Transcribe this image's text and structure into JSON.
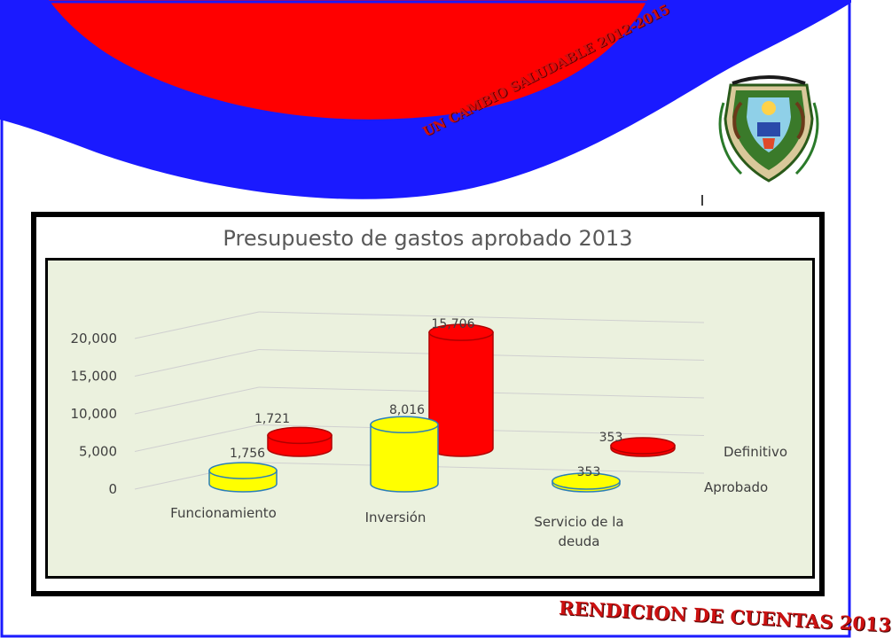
{
  "slogan": "UN CAMBIO SALUDABLE 2012-2015",
  "footer": "RENDICION DE CUENTAS 2013",
  "colors": {
    "red": "#ff0000",
    "blue": "#1a1aff",
    "yellow": "#ffff00",
    "plot_bg": "#ebf1de"
  },
  "chart_data": {
    "type": "bar",
    "title": "Presupuesto de gastos aprobado 2013",
    "categories": [
      "Funcionamiento",
      "Inversión",
      "Servicio de la deuda"
    ],
    "series": [
      {
        "name": "Aprobado",
        "values": [
          1756,
          8016,
          353
        ],
        "labels": [
          "1,756",
          "8,016",
          "353"
        ],
        "color": "#ffff00"
      },
      {
        "name": "Definitivo",
        "values": [
          1721,
          15706,
          353
        ],
        "labels": [
          "1,721",
          "15,706",
          "353"
        ],
        "color": "#ff0000"
      }
    ],
    "yticks": [
      "0",
      "5,000",
      "10,000",
      "15,000",
      "20,000"
    ],
    "ylim": [
      0,
      20000
    ],
    "grid": true,
    "legend": "series names at right end of depth axis"
  }
}
